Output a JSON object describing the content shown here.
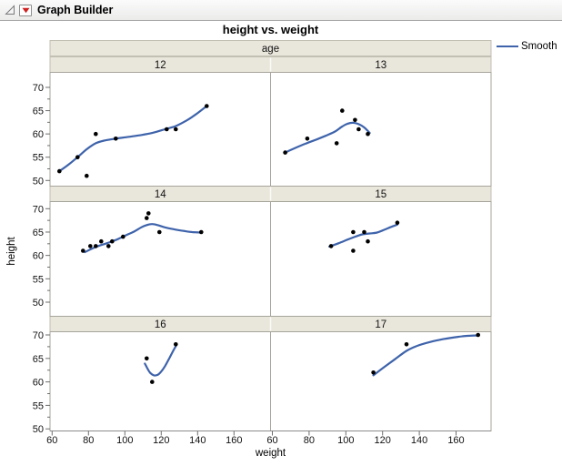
{
  "window": {
    "title": "Graph Builder"
  },
  "chart_data": {
    "type": "scatter",
    "title": "height vs. weight",
    "xlabel": "weight",
    "ylabel": "height",
    "facet_label": "age",
    "legend": [
      {
        "label": "Smooth",
        "color": "#3e63ab"
      }
    ],
    "point_color": "#000000",
    "x_ticks": [
      60,
      80,
      100,
      120,
      140,
      160
    ],
    "y_ticks": [
      70,
      65,
      60,
      55,
      50
    ],
    "y_minor_ticks": [
      67.5,
      62.5,
      57.5,
      52.5
    ],
    "x_range": [
      58.8,
      180
    ],
    "y_range": [
      48.7,
      73.2
    ],
    "panels": [
      {
        "facet": "12",
        "points": [
          [
            64,
            52
          ],
          [
            74,
            55
          ],
          [
            79,
            51
          ],
          [
            84,
            60
          ],
          [
            95,
            59
          ],
          [
            123,
            61
          ],
          [
            128,
            61
          ],
          [
            145,
            66
          ]
        ],
        "smooth": [
          [
            64,
            52
          ],
          [
            69,
            53.4
          ],
          [
            74,
            55
          ],
          [
            79,
            56.7
          ],
          [
            84,
            58
          ],
          [
            89,
            58.6
          ],
          [
            95,
            59
          ],
          [
            101,
            59.3
          ],
          [
            108,
            59.7
          ],
          [
            115,
            60.2
          ],
          [
            122,
            61
          ],
          [
            128,
            61.7
          ],
          [
            134,
            62.9
          ],
          [
            139,
            64.2
          ],
          [
            145,
            66
          ]
        ]
      },
      {
        "facet": "13",
        "points": [
          [
            67,
            56
          ],
          [
            79,
            59
          ],
          [
            95,
            58
          ],
          [
            98,
            65
          ],
          [
            105,
            63
          ],
          [
            107,
            61
          ],
          [
            112,
            60
          ]
        ],
        "smooth": [
          [
            67,
            56
          ],
          [
            72,
            56.9
          ],
          [
            78,
            57.9
          ],
          [
            84,
            58.8
          ],
          [
            89,
            59.6
          ],
          [
            94,
            60.5
          ],
          [
            98,
            61.6
          ],
          [
            101,
            62.2
          ],
          [
            104,
            62.4
          ],
          [
            107,
            62.1
          ],
          [
            110,
            61.4
          ],
          [
            113,
            60.2
          ]
        ]
      },
      {
        "facet": "14",
        "points": [
          [
            77,
            61
          ],
          [
            81,
            62
          ],
          [
            84,
            62
          ],
          [
            87,
            63
          ],
          [
            91,
            62
          ],
          [
            93,
            63
          ],
          [
            99,
            64
          ],
          [
            112,
            68
          ],
          [
            113,
            69
          ],
          [
            119,
            65
          ],
          [
            142,
            65
          ]
        ],
        "smooth": [
          [
            78,
            60.7
          ],
          [
            84,
            61.8
          ],
          [
            90,
            62.6
          ],
          [
            95,
            63.3
          ],
          [
            100,
            64.2
          ],
          [
            105,
            65.1
          ],
          [
            109,
            66
          ],
          [
            112,
            66.5
          ],
          [
            115,
            66.7
          ],
          [
            118,
            66.5
          ],
          [
            122,
            66
          ],
          [
            127,
            65.6
          ],
          [
            133,
            65.2
          ],
          [
            137,
            65
          ],
          [
            142,
            64.9
          ]
        ]
      },
      {
        "facet": "15",
        "points": [
          [
            92,
            62
          ],
          [
            104,
            61
          ],
          [
            104,
            65
          ],
          [
            110,
            65
          ],
          [
            112,
            63
          ],
          [
            128,
            67
          ]
        ],
        "smooth": [
          [
            91,
            61.9
          ],
          [
            96,
            62.6
          ],
          [
            101,
            63.4
          ],
          [
            105,
            64
          ],
          [
            109,
            64.5
          ],
          [
            113,
            64.7
          ],
          [
            117,
            64.9
          ],
          [
            121,
            65.5
          ],
          [
            124,
            66
          ],
          [
            128,
            66.6
          ]
        ]
      },
      {
        "facet": "16",
        "points": [
          [
            112,
            65
          ],
          [
            115,
            60
          ],
          [
            128,
            68
          ]
        ],
        "smooth": [
          [
            111,
            63.9
          ],
          [
            112.5,
            62.8
          ],
          [
            114,
            61.9
          ],
          [
            116,
            61.4
          ],
          [
            118,
            61.5
          ],
          [
            120,
            62.2
          ],
          [
            122,
            63.3
          ],
          [
            124,
            64.7
          ],
          [
            126,
            66.2
          ],
          [
            128,
            67.6
          ]
        ]
      },
      {
        "facet": "17",
        "points": [
          [
            115,
            62
          ],
          [
            133,
            68
          ],
          [
            172,
            70
          ]
        ],
        "smooth": [
          [
            115,
            61.4
          ],
          [
            121,
            63.2
          ],
          [
            127,
            64.9
          ],
          [
            133,
            66.6
          ],
          [
            139,
            67.7
          ],
          [
            146,
            68.5
          ],
          [
            153,
            69.1
          ],
          [
            161,
            69.6
          ],
          [
            166,
            69.8
          ],
          [
            172,
            69.9
          ]
        ]
      }
    ]
  }
}
